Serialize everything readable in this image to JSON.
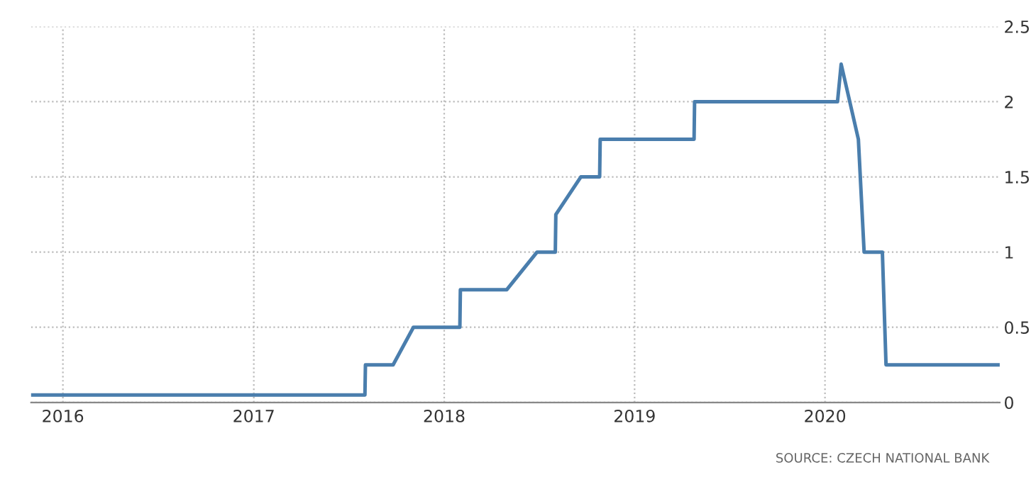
{
  "chart_data": {
    "type": "line",
    "x": [
      "2015-11-01",
      "2017-08-02",
      "2017-08-03",
      "2017-09-25",
      "2017-11-03",
      "2018-01-31",
      "2018-02-01",
      "2018-05-01",
      "2018-06-28",
      "2018-08-02",
      "2018-08-03",
      "2018-09-20",
      "2018-10-26",
      "2018-10-27",
      "2019-04-25",
      "2019-04-26",
      "2020-01-25",
      "2020-02-01",
      "2020-03-05",
      "2020-03-16",
      "2020-04-20",
      "2020-04-27",
      "2020-12-01"
    ],
    "series": [
      {
        "color": "#4a7ead",
        "values": [
          0.05,
          0.05,
          0.25,
          0.25,
          0.5,
          0.5,
          0.75,
          0.75,
          1.0,
          1.0,
          1.25,
          1.5,
          1.5,
          1.75,
          1.75,
          2.0,
          2.0,
          2.25,
          1.75,
          1.0,
          1.0,
          0.25,
          0.25
        ]
      }
    ],
    "xlim": [
      "2015-11-01",
      "2020-12-01"
    ],
    "xticks": [
      {
        "value": "2016-01-01",
        "label": "2016"
      },
      {
        "value": "2017-01-01",
        "label": "2017"
      },
      {
        "value": "2018-01-01",
        "label": "2018"
      },
      {
        "value": "2019-01-01",
        "label": "2019"
      },
      {
        "value": "2020-01-01",
        "label": "2020"
      }
    ],
    "ylim": [
      0,
      2.5
    ],
    "yticks": [
      0,
      0.5,
      1,
      1.5,
      2,
      2.5
    ],
    "grid": true,
    "line_style": "solid",
    "marker": "none",
    "annotations": [
      "SOURCE: CZECH NATIONAL BANK"
    ]
  }
}
